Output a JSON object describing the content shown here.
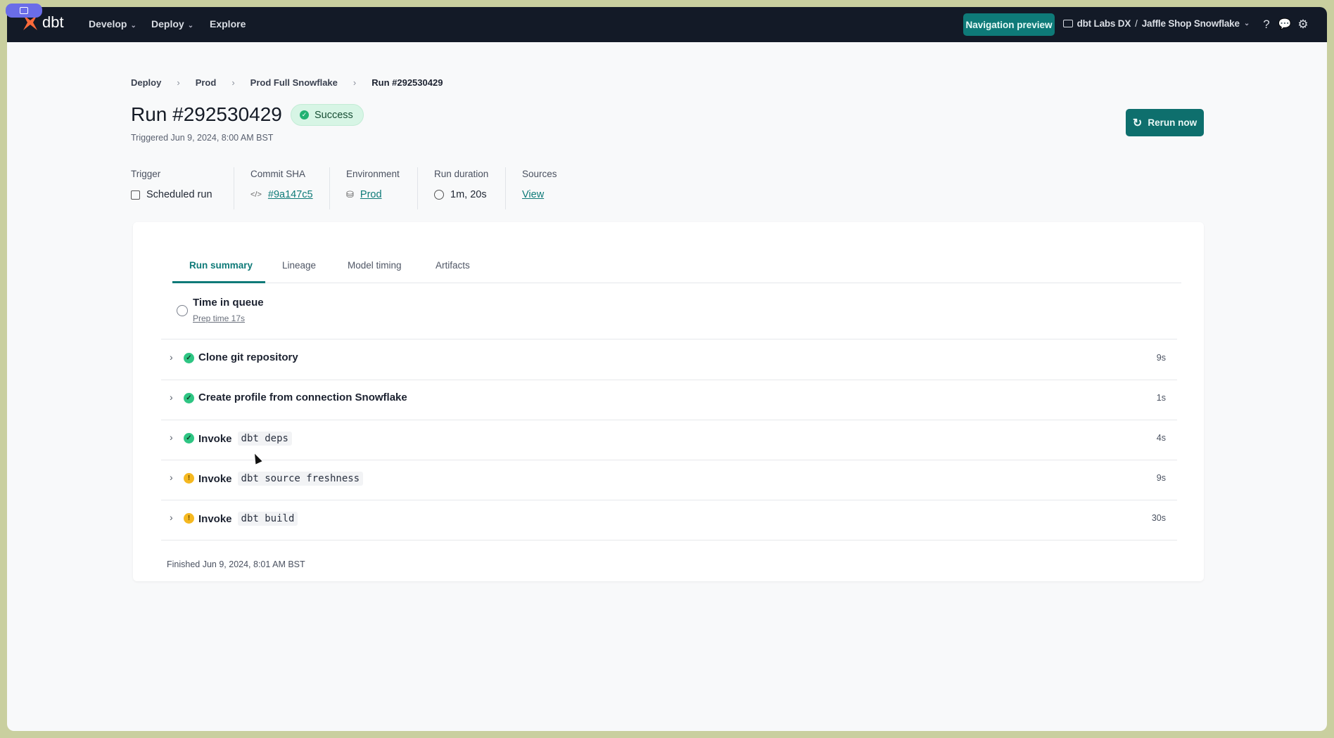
{
  "topbar": {
    "logo": "dbt",
    "nav": [
      {
        "label": "Develop",
        "dropdown": true
      },
      {
        "label": "Deploy",
        "dropdown": true
      },
      {
        "label": "Explore",
        "dropdown": false
      }
    ],
    "nav_preview": "Navigation preview",
    "account": "dbt Labs DX",
    "separator": "/",
    "project": "Jaffle Shop Snowflake",
    "icons": [
      "help-icon",
      "feedback-icon",
      "gear-icon"
    ]
  },
  "breadcrumb": [
    "Deploy",
    "Prod",
    "Prod Full Snowflake",
    "Run #292530429"
  ],
  "header": {
    "title": "Run #292530429",
    "status": "Success",
    "triggered": "Triggered Jun 9, 2024, 8:00 AM BST",
    "rerun": "Rerun now"
  },
  "meta": [
    {
      "label": "Trigger",
      "value": "Scheduled run",
      "icon": "calendar-icon",
      "link": false
    },
    {
      "label": "Commit SHA",
      "value": "#9a147c5",
      "icon": "code-icon",
      "link": true
    },
    {
      "label": "Environment",
      "value": "Prod",
      "icon": "database-icon",
      "link": true
    },
    {
      "label": "Run duration",
      "value": "1m, 20s",
      "icon": "clock-icon",
      "link": false
    },
    {
      "label": "Sources",
      "value": "View",
      "icon": "",
      "link": true
    }
  ],
  "tabs": [
    "Run summary",
    "Lineage",
    "Model timing",
    "Artifacts"
  ],
  "active_tab": "Run summary",
  "queue": {
    "title": "Time in queue",
    "prep": "Prep time 17s"
  },
  "steps": [
    {
      "label": "Clone git repository",
      "code": "",
      "status": "success",
      "duration": "9s"
    },
    {
      "label": "Create profile from connection Snowflake",
      "code": "",
      "status": "success",
      "duration": "1s"
    },
    {
      "label": "Invoke",
      "code": "dbt deps",
      "status": "success",
      "duration": "4s"
    },
    {
      "label": "Invoke",
      "code": "dbt source freshness",
      "status": "warning",
      "duration": "9s"
    },
    {
      "label": "Invoke",
      "code": "dbt build",
      "status": "warning",
      "duration": "30s"
    }
  ],
  "finished": "Finished Jun 9, 2024, 8:01 AM BST",
  "colors": {
    "accent": "#0e7a78",
    "success": "#2ec583",
    "warning": "#f5b820",
    "topbar": "#131a27"
  }
}
